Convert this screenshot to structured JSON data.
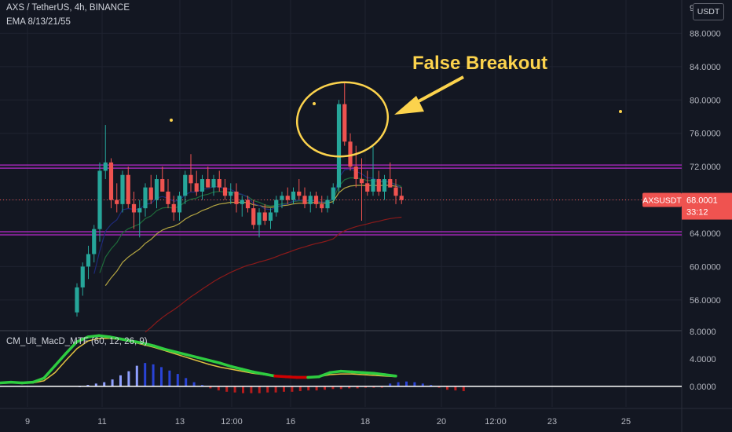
{
  "header": {
    "symbol_line": "AXS / TetherUS, 4h, BINANCE",
    "indicator_line": "EMA 8/13/21/55",
    "currency_button": "USDT"
  },
  "price_badge": {
    "symbol": "AXSUSDT",
    "price": "68.0001",
    "countdown": "33:12"
  },
  "annotation": {
    "text": "False Breakout"
  },
  "macd_legend": "CM_Ult_MacD_MTF (60, 12, 26, 9)",
  "colors": {
    "background": "#131722",
    "up": "#26a69a",
    "down": "#ef5350",
    "level_line": "#9c27b0",
    "annotation": "#fcd34d",
    "ema8": "#1e2a78",
    "ema13": "#1e6b3a",
    "ema21": "#b5a642",
    "ema55": "#8b1a1a"
  },
  "chart_data": [
    {
      "type": "candlestick",
      "title": "AXS / TetherUS, 4h, BINANCE",
      "x_ticks": [
        "9",
        "11",
        "13",
        "12:00",
        "16",
        "18",
        "20",
        "12:00",
        "23",
        "25"
      ],
      "y_ticks": [
        "56.0000",
        "60.0000",
        "64.0000",
        "68.0000",
        "72.0000",
        "76.0000",
        "80.0000",
        "84.0000",
        "88.0000"
      ],
      "ylim": [
        52.4,
        92.0
      ],
      "current_price": 68.0001,
      "horizontal_levels": [
        72.0,
        64.0
      ],
      "candles": [
        [
          54.5,
          58.0,
          54.0,
          57.5
        ],
        [
          57.5,
          60.5,
          56.5,
          60.0
        ],
        [
          60.0,
          62.5,
          58.5,
          61.5
        ],
        [
          61.5,
          65.0,
          60.5,
          64.5
        ],
        [
          64.5,
          72.5,
          63.0,
          71.5
        ],
        [
          71.5,
          77.0,
          70.5,
          72.5
        ],
        [
          72.5,
          73.0,
          67.0,
          68.0
        ],
        [
          68.0,
          70.0,
          66.5,
          67.5
        ],
        [
          67.5,
          71.5,
          66.5,
          71.0
        ],
        [
          71.0,
          72.0,
          67.0,
          67.5
        ],
        [
          67.5,
          69.0,
          64.5,
          66.5
        ],
        [
          66.5,
          68.0,
          63.5,
          67.0
        ],
        [
          67.0,
          70.0,
          66.0,
          69.5
        ],
        [
          69.5,
          71.0,
          67.5,
          68.0
        ],
        [
          68.0,
          71.0,
          67.0,
          70.5
        ],
        [
          70.5,
          72.0,
          69.0,
          69.0
        ],
        [
          69.0,
          70.5,
          67.0,
          67.5
        ],
        [
          67.5,
          68.5,
          65.5,
          66.5
        ],
        [
          66.5,
          69.0,
          65.5,
          68.5
        ],
        [
          68.5,
          71.5,
          67.5,
          71.0
        ],
        [
          71.0,
          73.5,
          69.0,
          70.0
        ],
        [
          70.0,
          71.5,
          68.5,
          69.0
        ],
        [
          69.0,
          71.0,
          68.0,
          70.5
        ],
        [
          70.5,
          72.0,
          69.5,
          69.5
        ],
        [
          69.5,
          71.0,
          68.5,
          70.5
        ],
        [
          70.5,
          71.5,
          69.0,
          69.5
        ],
        [
          69.5,
          70.5,
          68.0,
          68.5
        ],
        [
          68.5,
          70.0,
          67.5,
          69.0
        ],
        [
          69.0,
          70.0,
          66.5,
          67.5
        ],
        [
          67.5,
          68.5,
          66.0,
          68.0
        ],
        [
          68.0,
          68.5,
          66.5,
          67.0
        ],
        [
          67.0,
          68.0,
          64.5,
          65.0
        ],
        [
          65.0,
          67.0,
          63.5,
          66.5
        ],
        [
          66.5,
          67.5,
          65.0,
          65.5
        ],
        [
          65.5,
          67.0,
          64.5,
          66.5
        ],
        [
          66.5,
          68.5,
          66.0,
          68.0
        ],
        [
          68.0,
          69.0,
          67.0,
          68.5
        ],
        [
          68.5,
          69.5,
          67.5,
          68.0
        ],
        [
          68.0,
          69.5,
          67.5,
          69.0
        ],
        [
          69.0,
          70.5,
          68.0,
          68.5
        ],
        [
          68.5,
          69.5,
          67.0,
          67.5
        ],
        [
          67.5,
          69.0,
          66.5,
          68.5
        ],
        [
          68.5,
          69.0,
          67.0,
          67.5
        ],
        [
          67.5,
          68.5,
          66.5,
          67.0
        ],
        [
          67.0,
          68.5,
          66.5,
          68.0
        ],
        [
          68.0,
          70.0,
          67.5,
          69.5
        ],
        [
          69.5,
          80.0,
          69.0,
          79.5
        ],
        [
          79.5,
          82.0,
          74.5,
          75.0
        ],
        [
          75.0,
          76.0,
          71.5,
          72.0
        ],
        [
          72.0,
          74.5,
          69.5,
          70.5
        ],
        [
          70.5,
          73.0,
          65.5,
          70.0
        ],
        [
          70.0,
          71.5,
          68.5,
          69.0
        ],
        [
          69.0,
          74.5,
          68.5,
          70.5
        ],
        [
          70.5,
          71.5,
          68.5,
          69.0
        ],
        [
          69.0,
          71.0,
          68.0,
          70.5
        ],
        [
          70.5,
          72.5,
          69.5,
          69.5
        ],
        [
          69.5,
          70.5,
          67.5,
          68.5
        ],
        [
          68.5,
          69.5,
          67.5,
          68.0
        ]
      ]
    },
    {
      "type": "macd",
      "title": "CM_Ult_MacD_MTF (60, 12, 26, 9)",
      "y_ticks": [
        "0.0000",
        "4.0000",
        "8.0000"
      ],
      "ylim": [
        -3.0,
        8.0
      ],
      "histogram": [
        0.0,
        0.2,
        0.4,
        0.6,
        1.0,
        1.6,
        2.2,
        3.0,
        3.4,
        3.2,
        2.8,
        2.3,
        1.8,
        1.2,
        0.6,
        0.2,
        -0.3,
        -0.6,
        -0.8,
        -0.9,
        -1.0,
        -1.0,
        -1.0,
        -0.9,
        -0.9,
        -0.8,
        -0.8,
        -0.7,
        -0.6,
        -0.6,
        -0.5,
        -0.4,
        -0.4,
        -0.3,
        -0.3,
        -0.2,
        -0.2,
        -0.2,
        0.4,
        0.6,
        0.7,
        0.6,
        0.4,
        0.2,
        -0.2,
        -0.5,
        -0.6,
        -0.7
      ],
      "macd_line": [
        0.5,
        0.6,
        0.5,
        0.6,
        1.2,
        3.0,
        4.8,
        6.5,
        7.2,
        7.4,
        7.2,
        6.9,
        6.6,
        6.3,
        5.9,
        5.4,
        5.0,
        4.6,
        4.2,
        3.8,
        3.4,
        2.9,
        2.5,
        2.1,
        1.8,
        1.5,
        1.4,
        1.3,
        1.3,
        1.4,
        2.0,
        2.2,
        2.1,
        2.0,
        1.9,
        1.7,
        1.5
      ],
      "signal_line": [
        0.4,
        0.5,
        0.5,
        0.5,
        0.8,
        2.0,
        3.8,
        5.5,
        6.6,
        7.0,
        7.0,
        6.8,
        6.5,
        6.1,
        5.7,
        5.2,
        4.7,
        4.2,
        3.7,
        3.2,
        2.8,
        2.5,
        2.2,
        1.9,
        1.7,
        1.5,
        1.5,
        1.4,
        1.4,
        1.4,
        1.7,
        1.8,
        1.8,
        1.7,
        1.6,
        1.5,
        1.4
      ]
    }
  ]
}
